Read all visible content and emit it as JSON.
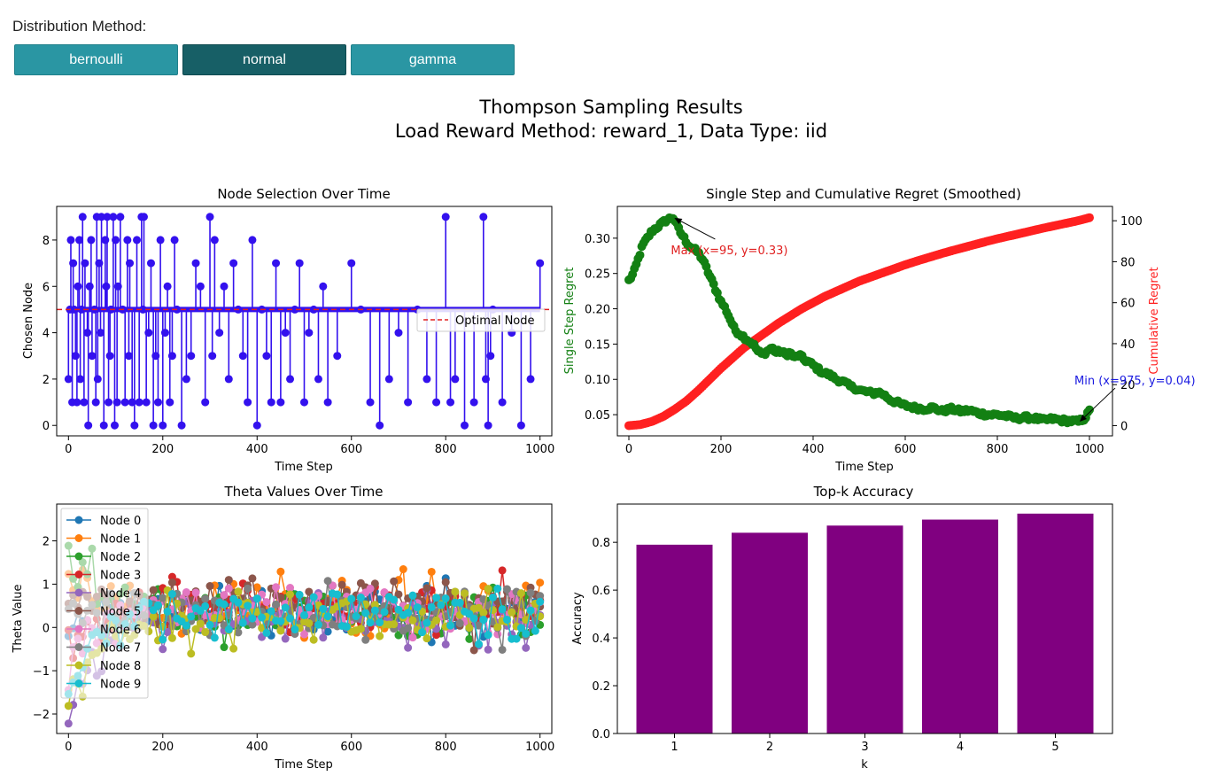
{
  "controls": {
    "label": "Distribution Method:",
    "buttons": [
      {
        "label": "bernoulli",
        "active": false
      },
      {
        "label": "normal",
        "active": true
      },
      {
        "label": "gamma",
        "active": false
      }
    ]
  },
  "figure": {
    "title_line1": "Thompson Sampling Results",
    "title_line2": "Load Reward Method: reward_1, Data Type: iid"
  },
  "colors": {
    "button": "#2a96a3",
    "button_active": "#175f66",
    "node_line": "#3311ee",
    "optimal": "#e02020",
    "single_regret": "#138013",
    "cumulative_regret": "#ff2020",
    "bar": "#800080",
    "min_annotation": "#1a1ae0",
    "max_annotation": "#e02020"
  },
  "chart_data": [
    {
      "type": "line",
      "title": "Node Selection Over Time",
      "xlabel": "Time Step",
      "ylabel": "Chosen Node",
      "xlim": [
        -25,
        1025
      ],
      "ylim": [
        -0.45,
        9.45
      ],
      "xticks": [
        0,
        200,
        400,
        600,
        800,
        1000
      ],
      "yticks": [
        0,
        2,
        4,
        6,
        8
      ],
      "optimal_node": 5,
      "legend": {
        "entries": [
          "Optimal Node"
        ],
        "placement": "center-right"
      },
      "series": [
        {
          "x": [
            0,
            3,
            5,
            8,
            10,
            12,
            15,
            18,
            20,
            23,
            25,
            28,
            30,
            33,
            35,
            40,
            42,
            45,
            48,
            50,
            55,
            58,
            60,
            62,
            65,
            68,
            70,
            75,
            78,
            80,
            82,
            85,
            88,
            90,
            95,
            98,
            100,
            103,
            105,
            110,
            115,
            120,
            125,
            128,
            130,
            135,
            140,
            145,
            150,
            155,
            158,
            160,
            165,
            170,
            175,
            180,
            185,
            190,
            195,
            200,
            205,
            210,
            215,
            220,
            225,
            230,
            240,
            250,
            260,
            270,
            280,
            290,
            300,
            305,
            310,
            320,
            330,
            340,
            350,
            360,
            370,
            380,
            390,
            400,
            410,
            420,
            430,
            440,
            450,
            460,
            470,
            480,
            490,
            500,
            510,
            520,
            530,
            540,
            550,
            570,
            600,
            620,
            640,
            660,
            680,
            700,
            720,
            740,
            760,
            780,
            800,
            810,
            820,
            840,
            860,
            880,
            885,
            890,
            895,
            900,
            920,
            940,
            960,
            980,
            1000
          ],
          "y": [
            2,
            5,
            8,
            1,
            7,
            5,
            3,
            1,
            6,
            8,
            2,
            5,
            9,
            1,
            7,
            4,
            0,
            6,
            8,
            3,
            5,
            1,
            9,
            2,
            7,
            4,
            9,
            0,
            8,
            6,
            9,
            1,
            3,
            5,
            9,
            0,
            8,
            1,
            6,
            9,
            5,
            1,
            8,
            3,
            7,
            1,
            0,
            8,
            1,
            9,
            5,
            9,
            1,
            4,
            7,
            0,
            3,
            1,
            8,
            0,
            4,
            6,
            1,
            3,
            8,
            5,
            0,
            2,
            3,
            7,
            6,
            1,
            9,
            3,
            8,
            4,
            6,
            2,
            7,
            5,
            3,
            1,
            8,
            0,
            5,
            3,
            1,
            7,
            1,
            4,
            2,
            5,
            7,
            1,
            4,
            5,
            2,
            6,
            1,
            3,
            7,
            5,
            1,
            0,
            2,
            4,
            1,
            5,
            2,
            1,
            9,
            1,
            2,
            0,
            1,
            9,
            2,
            0,
            3,
            5,
            1,
            4,
            0,
            2,
            7
          ]
        }
      ]
    },
    {
      "type": "line",
      "title": "Single Step and Cumulative Regret (Smoothed)",
      "xlabel": "Time Step",
      "ylabel": "Single Step Regret",
      "ylabel_right": "Cumulative Regret",
      "xlim": [
        -25,
        1050
      ],
      "ylim": [
        0.02,
        0.345
      ],
      "ylim_right": [
        -5,
        107
      ],
      "xticks": [
        0,
        200,
        400,
        600,
        800,
        1000
      ],
      "yticks": [
        0.05,
        0.1,
        0.15,
        0.2,
        0.25,
        0.3
      ],
      "yticks_right": [
        0,
        20,
        40,
        60,
        80,
        100
      ],
      "annotations": [
        {
          "text": "Max (x=95, y=0.33)",
          "x": 95,
          "y": 0.33
        },
        {
          "text": "Min (x=975, y=0.04)",
          "x": 975,
          "y": 0.04
        }
      ],
      "series": [
        {
          "name": "Single Step Regret",
          "axis": "left",
          "x": [
            0,
            10,
            20,
            30,
            40,
            50,
            60,
            70,
            80,
            90,
            95,
            100,
            110,
            120,
            130,
            140,
            150,
            160,
            170,
            180,
            190,
            200,
            210,
            220,
            230,
            240,
            250,
            260,
            270,
            280,
            290,
            300,
            310,
            320,
            330,
            340,
            350,
            360,
            370,
            380,
            390,
            400,
            410,
            420,
            430,
            440,
            450,
            460,
            470,
            480,
            490,
            500,
            510,
            520,
            530,
            540,
            550,
            560,
            570,
            580,
            590,
            600,
            620,
            640,
            660,
            680,
            700,
            720,
            740,
            760,
            780,
            800,
            820,
            840,
            860,
            880,
            900,
            920,
            940,
            960,
            975,
            990,
            1000
          ],
          "y": [
            0.24,
            0.25,
            0.27,
            0.29,
            0.3,
            0.31,
            0.315,
            0.32,
            0.325,
            0.328,
            0.33,
            0.325,
            0.31,
            0.3,
            0.29,
            0.285,
            0.28,
            0.27,
            0.255,
            0.24,
            0.225,
            0.21,
            0.2,
            0.185,
            0.17,
            0.165,
            0.16,
            0.155,
            0.15,
            0.14,
            0.135,
            0.14,
            0.145,
            0.138,
            0.14,
            0.135,
            0.138,
            0.13,
            0.135,
            0.128,
            0.125,
            0.12,
            0.115,
            0.11,
            0.108,
            0.105,
            0.1,
            0.098,
            0.095,
            0.09,
            0.088,
            0.085,
            0.083,
            0.082,
            0.08,
            0.082,
            0.08,
            0.075,
            0.07,
            0.068,
            0.065,
            0.063,
            0.06,
            0.058,
            0.06,
            0.055,
            0.058,
            0.055,
            0.056,
            0.052,
            0.05,
            0.05,
            0.048,
            0.045,
            0.046,
            0.045,
            0.042,
            0.044,
            0.042,
            0.041,
            0.04,
            0.045,
            0.055
          ]
        },
        {
          "name": "Cumulative Regret",
          "axis": "right",
          "x": [
            0,
            25,
            50,
            75,
            100,
            125,
            150,
            175,
            200,
            225,
            250,
            275,
            300,
            325,
            350,
            375,
            400,
            425,
            450,
            475,
            500,
            525,
            550,
            575,
            600,
            625,
            650,
            675,
            700,
            725,
            750,
            775,
            800,
            825,
            850,
            875,
            900,
            925,
            950,
            975,
            1000
          ],
          "y": [
            0,
            0.5,
            2,
            4.5,
            8,
            12,
            17,
            22.5,
            28,
            33,
            38,
            42,
            46,
            50,
            53.5,
            57,
            60,
            63,
            65.5,
            68,
            70.5,
            72.5,
            74.5,
            76.5,
            78.5,
            80.3,
            82,
            83.7,
            85.3,
            86.8,
            88.3,
            89.8,
            91.2,
            92.5,
            93.8,
            95.1,
            96.4,
            97.6,
            98.8,
            100,
            101.5
          ]
        }
      ]
    },
    {
      "type": "scatter",
      "title": "Theta Values Over Time",
      "xlabel": "Time Step",
      "ylabel": "Theta Value",
      "xlim": [
        -25,
        1025
      ],
      "ylim": [
        -2.45,
        2.85
      ],
      "xticks": [
        0,
        200,
        400,
        600,
        800,
        1000
      ],
      "yticks": [
        -2,
        -1,
        0,
        1,
        2
      ],
      "legend": {
        "placement": "upper-left"
      },
      "series": [
        {
          "name": "Node 0",
          "color": "#1f77b4",
          "start": 0.0,
          "mean": 0.3
        },
        {
          "name": "Node 1",
          "color": "#ff7f0e",
          "start": 1.2,
          "mean": 0.45
        },
        {
          "name": "Node 2",
          "color": "#2ca02c",
          "start": 1.5,
          "mean": 0.35
        },
        {
          "name": "Node 3",
          "color": "#d62728",
          "start": -0.6,
          "mean": 0.4
        },
        {
          "name": "Node 4",
          "color": "#9467bd",
          "start": -2.2,
          "mean": 0.2
        },
        {
          "name": "Node 5",
          "color": "#8c564b",
          "start": 0.8,
          "mean": 0.6
        },
        {
          "name": "Node 6",
          "color": "#e377c2",
          "start": -1.0,
          "mean": 0.35
        },
        {
          "name": "Node 7",
          "color": "#7f7f7f",
          "start": 0.5,
          "mean": 0.3
        },
        {
          "name": "Node 8",
          "color": "#bcbd22",
          "start": -1.8,
          "mean": 0.25
        },
        {
          "name": "Node 9",
          "color": "#17becf",
          "start": -1.5,
          "mean": 0.3
        }
      ]
    },
    {
      "type": "bar",
      "title": "Top-k Accuracy",
      "xlabel": "k",
      "ylabel": "Accuracy",
      "categories": [
        "1",
        "2",
        "3",
        "4",
        "5"
      ],
      "values": [
        0.79,
        0.84,
        0.87,
        0.895,
        0.92
      ],
      "ylim": [
        0,
        0.96
      ],
      "yticks": [
        0.0,
        0.2,
        0.4,
        0.6,
        0.8
      ]
    }
  ]
}
